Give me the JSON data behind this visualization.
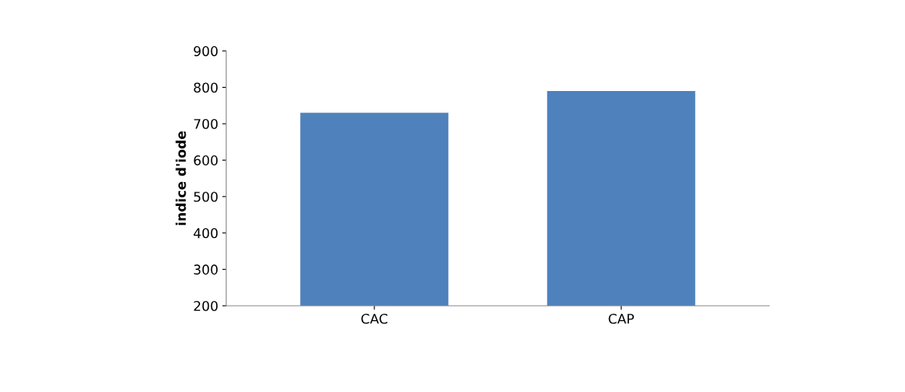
{
  "chart_data": {
    "type": "bar",
    "ylabel": "indice d'iode",
    "categories": [
      "CAC",
      "CAP"
    ],
    "values": [
      730,
      790
    ],
    "color": "#4f81bd",
    "ylim": [
      200,
      900
    ],
    "yticks": [
      200,
      300,
      400,
      500,
      600,
      700,
      800,
      900
    ],
    "grid": false
  }
}
